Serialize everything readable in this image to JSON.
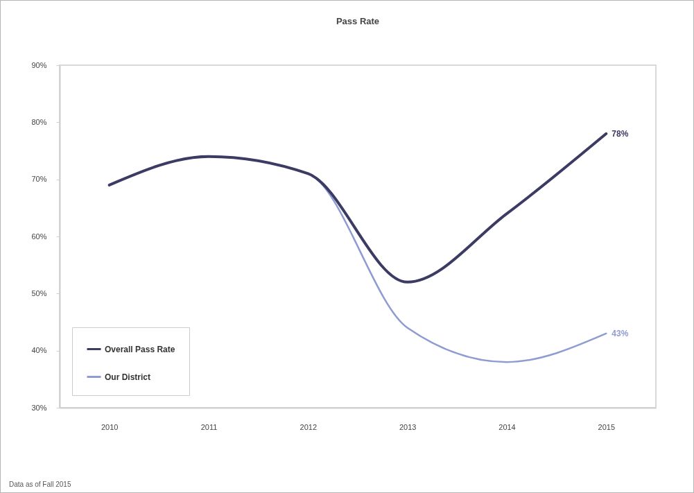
{
  "chart_data": {
    "type": "line",
    "title": "Pass Rate",
    "categories": [
      "2010",
      "2011",
      "2012",
      "2013",
      "2014",
      "2015"
    ],
    "series": [
      {
        "name": "Overall Pass Rate",
        "color": "#3b3b63",
        "values": [
          69,
          74,
          71,
          52,
          64,
          78
        ],
        "value_labels": [
          null,
          null,
          null,
          null,
          null,
          "78%"
        ]
      },
      {
        "name": "Our District",
        "color": "#8f9bd3",
        "values": [
          69,
          74,
          71,
          44,
          38,
          43
        ],
        "value_labels": [
          null,
          null,
          null,
          null,
          null,
          "43%"
        ]
      }
    ],
    "ylim": [
      30,
      90
    ],
    "yticks": [
      {
        "value": 30,
        "label": "30%"
      },
      {
        "value": 40,
        "label": "40%"
      },
      {
        "value": 50,
        "label": "50%"
      },
      {
        "value": 60,
        "label": "60%"
      },
      {
        "value": 70,
        "label": "70%"
      },
      {
        "value": 80,
        "label": "80%"
      },
      {
        "value": 90,
        "label": "90%"
      }
    ],
    "grid": false,
    "legend": "bottom left",
    "annotations": [
      "Data as of Fall 2015"
    ]
  }
}
